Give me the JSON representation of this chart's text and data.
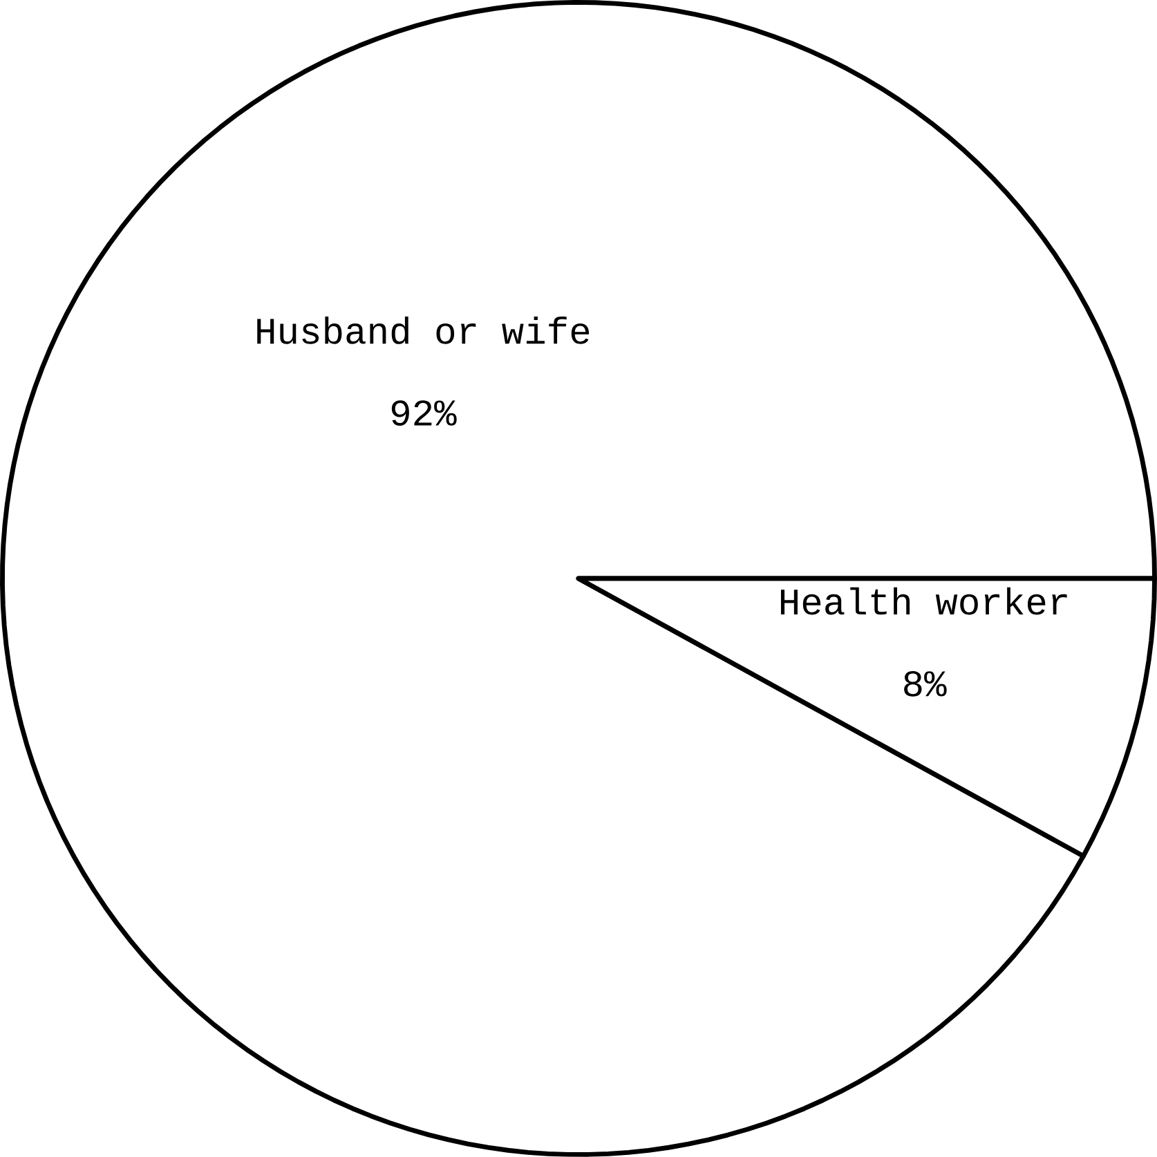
{
  "chart_data": {
    "type": "pie",
    "categories": [
      "Husband or wife",
      "Health worker"
    ],
    "values": [
      92,
      8
    ],
    "value_labels": [
      "92%",
      "8%"
    ],
    "colors": [
      "#ffffff",
      "#ffffff"
    ]
  }
}
